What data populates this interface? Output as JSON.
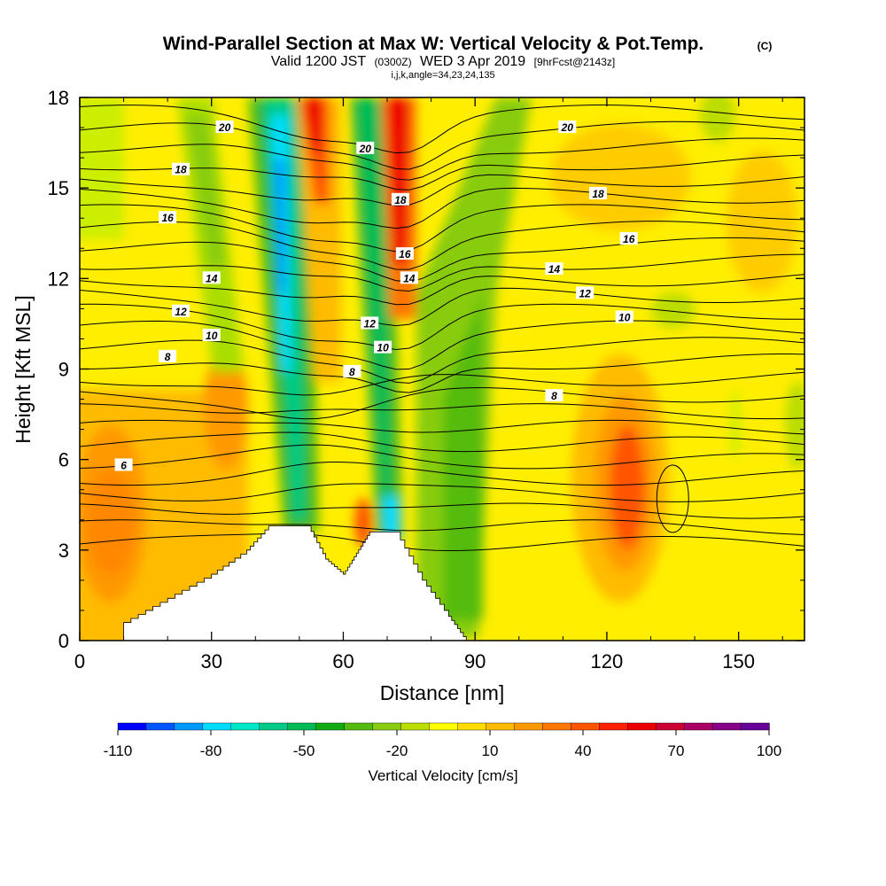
{
  "title": {
    "main": "Wind-Parallel Section at Max W: Vertical Velocity & Pot.Temp.",
    "copyright": "(C)",
    "valid_prefix": "Valid 1200 JST",
    "valid_utc": "(0300Z)",
    "valid_date": "WED 3 Apr 2019",
    "forecast": "[9hrFcst@2143z]",
    "params": "i,j,k,angle=34,23,24,135"
  },
  "chart_data": {
    "type": "heatmap",
    "xlabel": "Distance [nm]",
    "ylabel": "Height [Kft MSL]",
    "xlim": [
      0,
      165
    ],
    "ylim": [
      0,
      18
    ],
    "x_ticks": [
      0,
      30,
      60,
      90,
      120,
      150
    ],
    "y_ticks": [
      0,
      3,
      6,
      9,
      12,
      15,
      18
    ],
    "colorbar": {
      "title": "Vertical Velocity [cm/s]",
      "labels": [
        "-110",
        "-80",
        "-50",
        "-20",
        "10",
        "40",
        "70",
        "100"
      ],
      "colors": [
        "#0000ff",
        "#0055ff",
        "#0099ff",
        "#00ddff",
        "#00e8c8",
        "#00cc88",
        "#00bb55",
        "#11aa11",
        "#55bb11",
        "#88cc11",
        "#bbdd00",
        "#ffff00",
        "#ffdd00",
        "#ffbb00",
        "#ff9900",
        "#ff7700",
        "#ff5500",
        "#ff2200",
        "#ee0000",
        "#cc0033",
        "#aa0066",
        "#880088",
        "#660099"
      ]
    },
    "terrain": [
      [
        10,
        0.6
      ],
      [
        20,
        1.4
      ],
      [
        30,
        2.2
      ],
      [
        38,
        3.0
      ],
      [
        43,
        3.8
      ],
      [
        52,
        3.8
      ],
      [
        56,
        2.7
      ],
      [
        60,
        2.2
      ],
      [
        63,
        2.9
      ],
      [
        66,
        3.6
      ],
      [
        72,
        3.6
      ],
      [
        78,
        2.0
      ],
      [
        84,
        0.8
      ],
      [
        88,
        0.0
      ]
    ],
    "theta_contours": [
      {
        "label": "6",
        "x": 10,
        "y": 5.8
      },
      {
        "label": "8",
        "x": 20,
        "y": 9.4
      },
      {
        "label": "8",
        "x": 62,
        "y": 8.9
      },
      {
        "label": "8",
        "x": 108,
        "y": 8.1
      },
      {
        "label": "10",
        "x": 30,
        "y": 10.1
      },
      {
        "label": "10",
        "x": 69,
        "y": 9.7
      },
      {
        "label": "10",
        "x": 124,
        "y": 10.7
      },
      {
        "label": "12",
        "x": 23,
        "y": 10.9
      },
      {
        "label": "12",
        "x": 66,
        "y": 10.5
      },
      {
        "label": "12",
        "x": 115,
        "y": 11.5
      },
      {
        "label": "14",
        "x": 30,
        "y": 12.0
      },
      {
        "label": "14",
        "x": 75,
        "y": 12.0
      },
      {
        "label": "14",
        "x": 108,
        "y": 12.3
      },
      {
        "label": "16",
        "x": 20,
        "y": 14.0
      },
      {
        "label": "16",
        "x": 74,
        "y": 12.8
      },
      {
        "label": "16",
        "x": 125,
        "y": 13.3
      },
      {
        "label": "18",
        "x": 23,
        "y": 15.6
      },
      {
        "label": "18",
        "x": 73,
        "y": 14.6
      },
      {
        "label": "18",
        "x": 118,
        "y": 14.8
      },
      {
        "label": "20",
        "x": 33,
        "y": 17.0
      },
      {
        "label": "20",
        "x": 65,
        "y": 16.3
      },
      {
        "label": "20",
        "x": 111,
        "y": 17.0
      }
    ]
  }
}
